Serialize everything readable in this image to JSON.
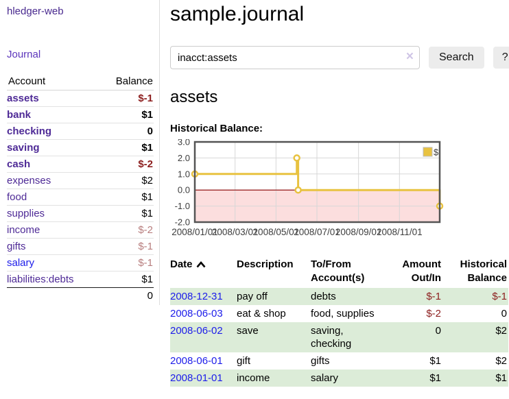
{
  "brand": "hledger-web",
  "nav": {
    "journal": "Journal"
  },
  "sidebar": {
    "headers": {
      "account": "Account",
      "balance": "Balance"
    },
    "accounts": [
      {
        "name": "assets",
        "balance": "$-1"
      },
      {
        "name": "bank",
        "balance": "$1"
      },
      {
        "name": "checking",
        "balance": "0"
      },
      {
        "name": "saving",
        "balance": "$1"
      },
      {
        "name": "cash",
        "balance": "$-2"
      },
      {
        "name": "expenses",
        "balance": "$2"
      },
      {
        "name": "food",
        "balance": "$1"
      },
      {
        "name": "supplies",
        "balance": "$1"
      },
      {
        "name": "income",
        "balance": "$-2"
      },
      {
        "name": "gifts",
        "balance": "$-1"
      },
      {
        "name": "salary",
        "balance": "$-1"
      },
      {
        "name": "liabilities:debts",
        "balance": "$1"
      }
    ],
    "total": "0"
  },
  "main": {
    "title": "sample.journal",
    "search": {
      "value": "inacct:assets",
      "clear": "×",
      "search_button": "Search",
      "help_button": "?"
    },
    "account_title": "assets",
    "chart_heading": "Historical Balance:"
  },
  "chart_data": {
    "type": "line",
    "step": true,
    "title": "Historical Balance",
    "xlim": [
      "2008-01-01",
      "2008-12-31"
    ],
    "ylim": [
      -2.0,
      3.0
    ],
    "y_ticks": [
      3.0,
      2.0,
      1.0,
      0.0,
      -1.0,
      -2.0
    ],
    "x_ticks": [
      "2008/01/01",
      "2008/03/01",
      "2008/05/01",
      "2008/07/01",
      "2008/09/01",
      "2008/11/01"
    ],
    "series": [
      {
        "name": "$",
        "color": "#e8c240",
        "points": [
          [
            "2008-01-01",
            1
          ],
          [
            "2008-06-01",
            2
          ],
          [
            "2008-06-03",
            0
          ],
          [
            "2008-12-31",
            -1
          ]
        ]
      }
    ],
    "legend": {
      "label": "$",
      "position": "top-right"
    },
    "grid": true,
    "negative_region_color": "#fcdede",
    "zero_line_color": "#8b0000",
    "border_color": "#545454",
    "grid_color": "#d7d7d7"
  },
  "register": {
    "headers": {
      "date": "Date",
      "description": "Description",
      "accounts": "To/From Account(s)",
      "amount": "Amount Out/In",
      "balance": "Historical Balance"
    },
    "rows": [
      {
        "date": "2008-12-31",
        "description": "pay off",
        "accounts": "debts",
        "amount": "$-1",
        "balance": "$-1"
      },
      {
        "date": "2008-06-03",
        "description": "eat & shop",
        "accounts": "food, supplies",
        "amount": "$-2",
        "balance": "0"
      },
      {
        "date": "2008-06-02",
        "description": "save",
        "accounts": "saving, checking",
        "amount": "0",
        "balance": "$2"
      },
      {
        "date": "2008-06-01",
        "description": "gift",
        "accounts": "gifts",
        "amount": "$1",
        "balance": "$2"
      },
      {
        "date": "2008-01-01",
        "description": "income",
        "accounts": "salary",
        "amount": "$1",
        "balance": "$1"
      }
    ]
  }
}
